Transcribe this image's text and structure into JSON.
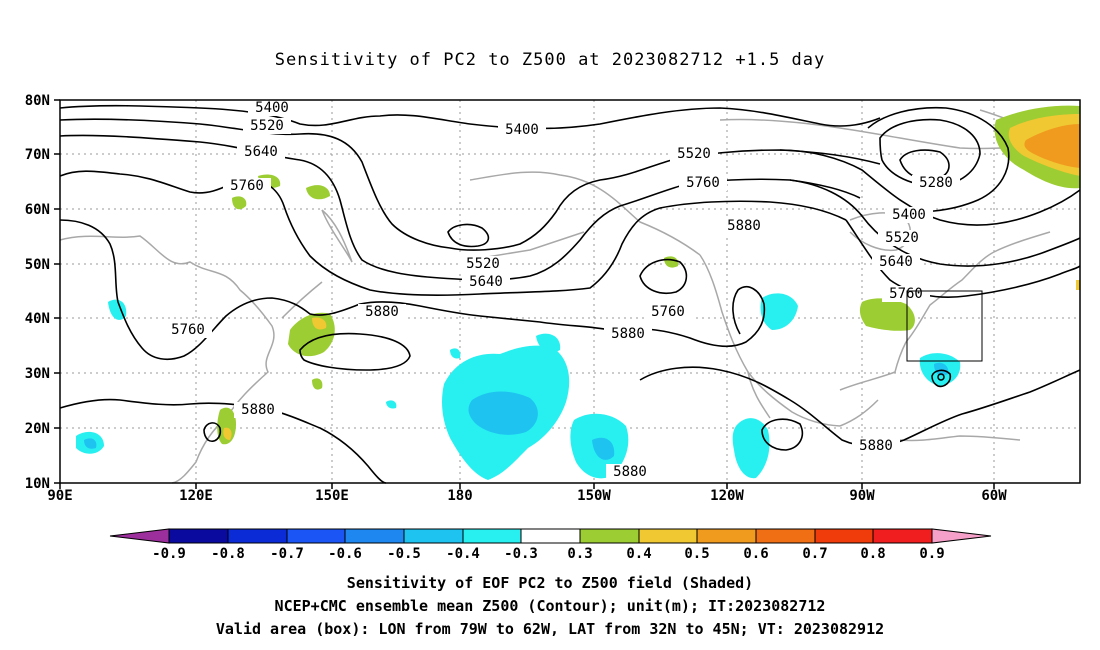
{
  "title": "Sensitivity of PC2 to Z500 at 2023082712 +1.5 day",
  "lat_labels": [
    "80N",
    "70N",
    "60N",
    "50N",
    "40N",
    "30N",
    "20N",
    "10N"
  ],
  "lon_labels": [
    "90E",
    "120E",
    "150E",
    "180",
    "150W",
    "120W",
    "90W",
    "60W"
  ],
  "contour_labels": [
    {
      "text": "5400"
    },
    {
      "text": "5520"
    },
    {
      "text": "5640"
    },
    {
      "text": "5760"
    },
    {
      "text": "5400"
    },
    {
      "text": "5520"
    },
    {
      "text": "5760"
    },
    {
      "text": "5880"
    },
    {
      "text": "5280"
    },
    {
      "text": "5400"
    },
    {
      "text": "5520"
    },
    {
      "text": "5640"
    },
    {
      "text": "5760"
    },
    {
      "text": "5520"
    },
    {
      "text": "5640"
    },
    {
      "text": "5880"
    },
    {
      "text": "5760"
    },
    {
      "text": "5880"
    },
    {
      "text": "5760"
    },
    {
      "text": "5880"
    },
    {
      "text": "5880"
    },
    {
      "text": "5880"
    }
  ],
  "colorbar": {
    "colors": [
      "#9c2f9c",
      "#0a0a9e",
      "#0a2bd6",
      "#1b55f5",
      "#1e87f0",
      "#1ec3f0",
      "#28f0f0",
      "#ffffff",
      "#9ccd32",
      "#f0c832",
      "#f09a1e",
      "#f06e14",
      "#f03c0a",
      "#f01e1e",
      "#f5a0c8"
    ],
    "labels": [
      "-0.9",
      "-0.8",
      "-0.7",
      "-0.6",
      "-0.5",
      "-0.4",
      "-0.3",
      "0.3",
      "0.4",
      "0.5",
      "0.6",
      "0.7",
      "0.8",
      "0.9"
    ]
  },
  "captions": [
    "Sensitivity of EOF PC2 to Z500 field (Shaded)",
    "NCEP+CMC ensemble mean Z500 (Contour); unit(m); IT:2023082712",
    "Valid area (box): LON from 79W to 62W, LAT from 32N to 45N; VT: 2023082912"
  ]
}
